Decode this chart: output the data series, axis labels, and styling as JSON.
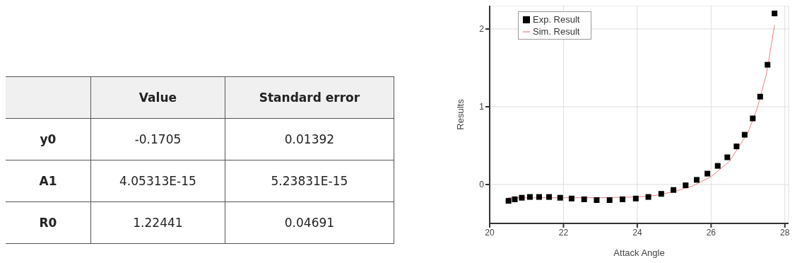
{
  "chart_data": [
    {
      "type": "other",
      "categories": [
        "Value",
        "Standard error"
      ],
      "y_categories": [
        "y0",
        "A1",
        "R0"
      ],
      "cell_labels": [
        [
          "-0.1705",
          "0.01392"
        ],
        [
          "4.05313E-15",
          "5.23831E-15"
        ],
        [
          "1.22441",
          "0.04691"
        ]
      ]
    },
    {
      "type": "scatter",
      "xlabel": "Attack Angle",
      "ylabel": "Results",
      "xlim": [
        20,
        28.1
      ],
      "ylim": [
        -0.5,
        2.3
      ],
      "xticks": [
        20,
        22,
        24,
        26,
        28
      ],
      "yticks": [
        0,
        1,
        2
      ],
      "grid": true,
      "legend": "top left",
      "series": [
        {
          "name": "Exp. Result",
          "type": "scatter",
          "color": "#000000",
          "marker": "square",
          "x": [
            20.51,
            20.68,
            20.87,
            21.09,
            21.34,
            21.61,
            21.91,
            22.22,
            22.56,
            22.9,
            23.25,
            23.6,
            23.96,
            24.3,
            24.65,
            24.98,
            25.31,
            25.61,
            25.9,
            26.18,
            26.44,
            26.69,
            26.91,
            27.13,
            27.33,
            27.53,
            27.72
          ],
          "values": [
            -0.21,
            -0.19,
            -0.17,
            -0.16,
            -0.16,
            -0.16,
            -0.17,
            -0.18,
            -0.19,
            -0.2,
            -0.2,
            -0.19,
            -0.18,
            -0.16,
            -0.12,
            -0.07,
            -0.01,
            0.06,
            0.14,
            0.24,
            0.35,
            0.49,
            0.64,
            0.85,
            1.13,
            1.54,
            2.2
          ]
        },
        {
          "name": "Sim. Result",
          "type": "line",
          "color": "#f08080",
          "marker": "none",
          "line_style": "solid",
          "x": [
            20.5,
            22,
            23,
            24,
            24.5,
            25,
            25.5,
            26,
            26.5,
            27,
            27.25,
            27.5,
            27.72
          ],
          "values": [
            -0.17,
            -0.17,
            -0.17,
            -0.16,
            -0.14,
            -0.09,
            -0.02,
            0.1,
            0.3,
            0.67,
            0.98,
            1.42,
            2.05
          ]
        }
      ]
    }
  ]
}
